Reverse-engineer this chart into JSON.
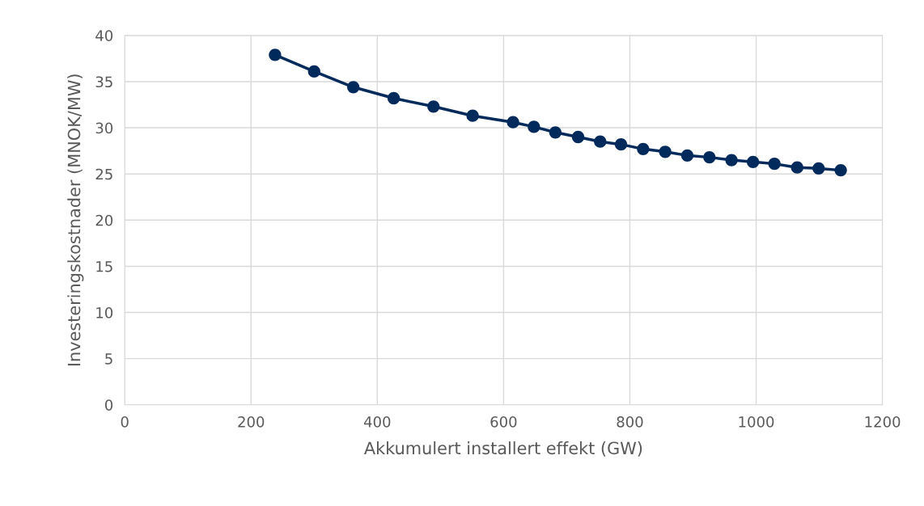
{
  "chart_data": {
    "type": "line",
    "xlabel": "Akkumulert installert effekt (GW)",
    "ylabel": "Investeringskostnader (MNOK/MW)",
    "x": [
      238,
      300,
      362,
      426,
      489,
      551,
      615,
      648,
      682,
      718,
      753,
      786,
      821,
      856,
      891,
      926,
      961,
      995,
      1029,
      1065,
      1099,
      1134
    ],
    "series": [
      {
        "color": "#002a5c",
        "values": [
          37.9,
          36.1,
          34.4,
          33.2,
          32.3,
          31.3,
          30.6,
          30.1,
          29.5,
          29.0,
          28.5,
          28.2,
          27.7,
          27.4,
          27.0,
          26.8,
          26.5,
          26.3,
          26.1,
          25.7,
          25.6,
          25.4
        ]
      }
    ],
    "xlim": [
      0,
      1200
    ],
    "xticks": [
      0,
      200,
      400,
      600,
      800,
      1000,
      1200
    ],
    "ylim": [
      0,
      40
    ],
    "yticks": [
      0,
      5,
      10,
      15,
      20,
      25,
      30,
      35,
      40
    ],
    "grid": true,
    "marker": "circle",
    "line_style": "solid"
  }
}
